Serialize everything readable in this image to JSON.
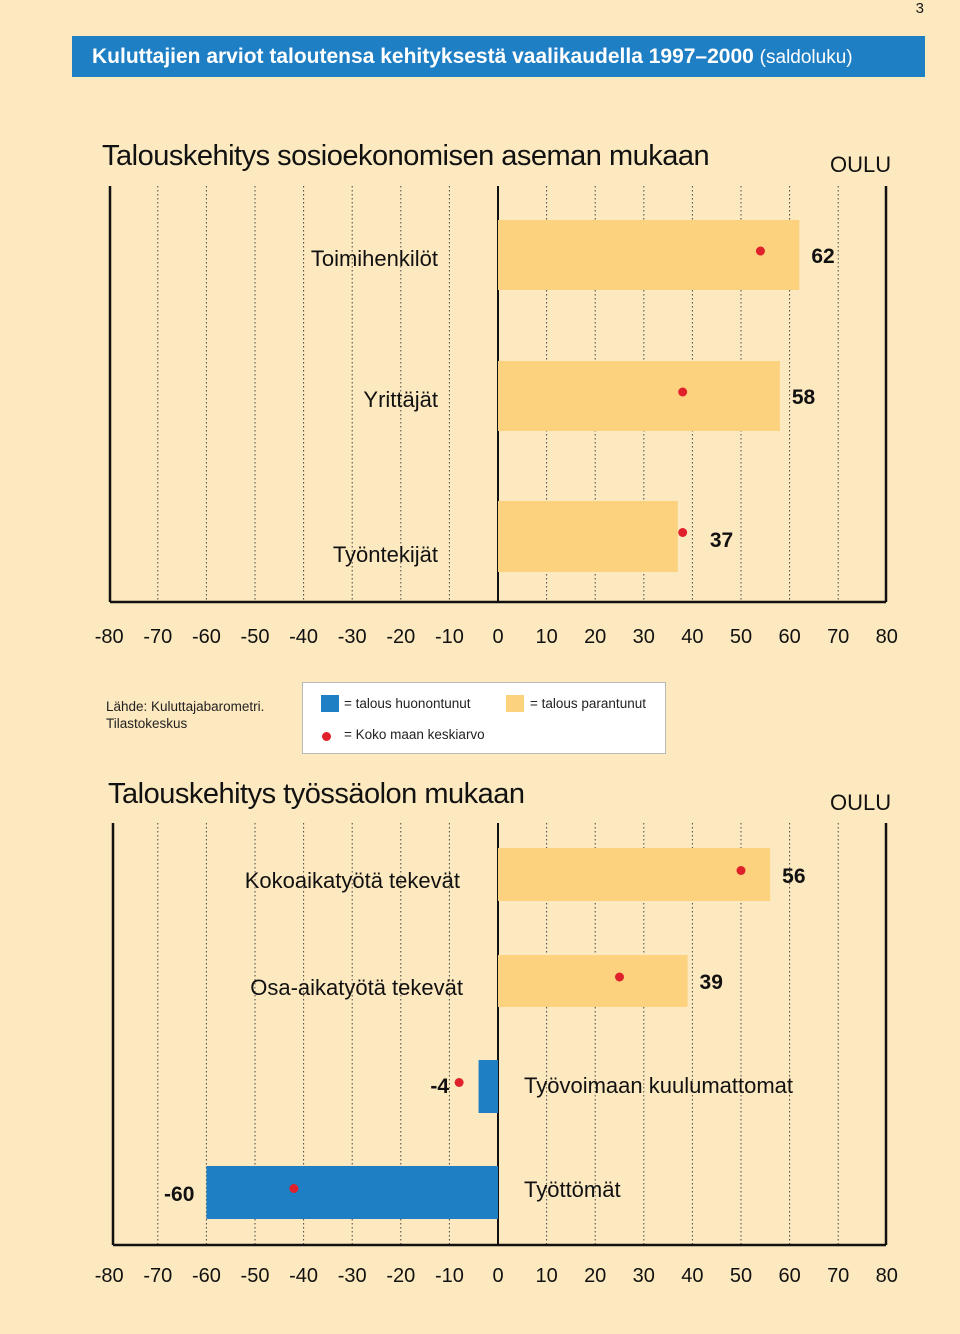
{
  "page_number": "3",
  "banner": {
    "title": "Kuluttajien arviot taloutensa kehityksestä vaalikaudella 1997–2000",
    "subtitle": "(saldoluku)"
  },
  "colors": {
    "improved": "#fcd27f",
    "worsened": "#1f7fc4",
    "average_marker": "#e0202a",
    "background": "#fde9bf"
  },
  "source": {
    "line1": "Lähde: Kuluttajabarometri.",
    "line2": "Tilastokeskus"
  },
  "legend": {
    "worsened": "= talous huonontunut",
    "improved": "= talous parantunut",
    "average": "= Koko maan keskiarvo"
  },
  "chart_data": [
    {
      "type": "bar",
      "orientation": "horizontal",
      "title": "Talouskehitys sosioekonomisen aseman mukaan",
      "region": "OULU",
      "xlim": [
        -80,
        80
      ],
      "xticks": [
        "-80",
        "-70",
        "-60",
        "-50",
        "-40",
        "-30",
        "-20",
        "-10",
        "0",
        "10",
        "20",
        "30",
        "40",
        "50",
        "60",
        "70",
        "80"
      ],
      "categories": [
        "Toimihenkilöt",
        "Yrittäjät",
        "Työntekijät"
      ],
      "values": [
        62,
        58,
        37
      ],
      "national_average": [
        54,
        38,
        38
      ]
    },
    {
      "type": "bar",
      "orientation": "horizontal",
      "title": "Talouskehitys työssäolon mukaan",
      "region": "OULU",
      "xlim": [
        -80,
        80
      ],
      "xticks": [
        "-80",
        "-70",
        "-60",
        "-50",
        "-40",
        "-30",
        "-20",
        "-10",
        "0",
        "10",
        "20",
        "30",
        "40",
        "50",
        "60",
        "70",
        "80"
      ],
      "categories": [
        "Kokoaikatyötä tekevät",
        "Osa-aikatyötä tekevät",
        "Työvoimaan kuulumattomat",
        "Työttömät"
      ],
      "values": [
        56,
        39,
        -4,
        -60
      ],
      "national_average": [
        50,
        25,
        -8,
        -42
      ]
    }
  ]
}
